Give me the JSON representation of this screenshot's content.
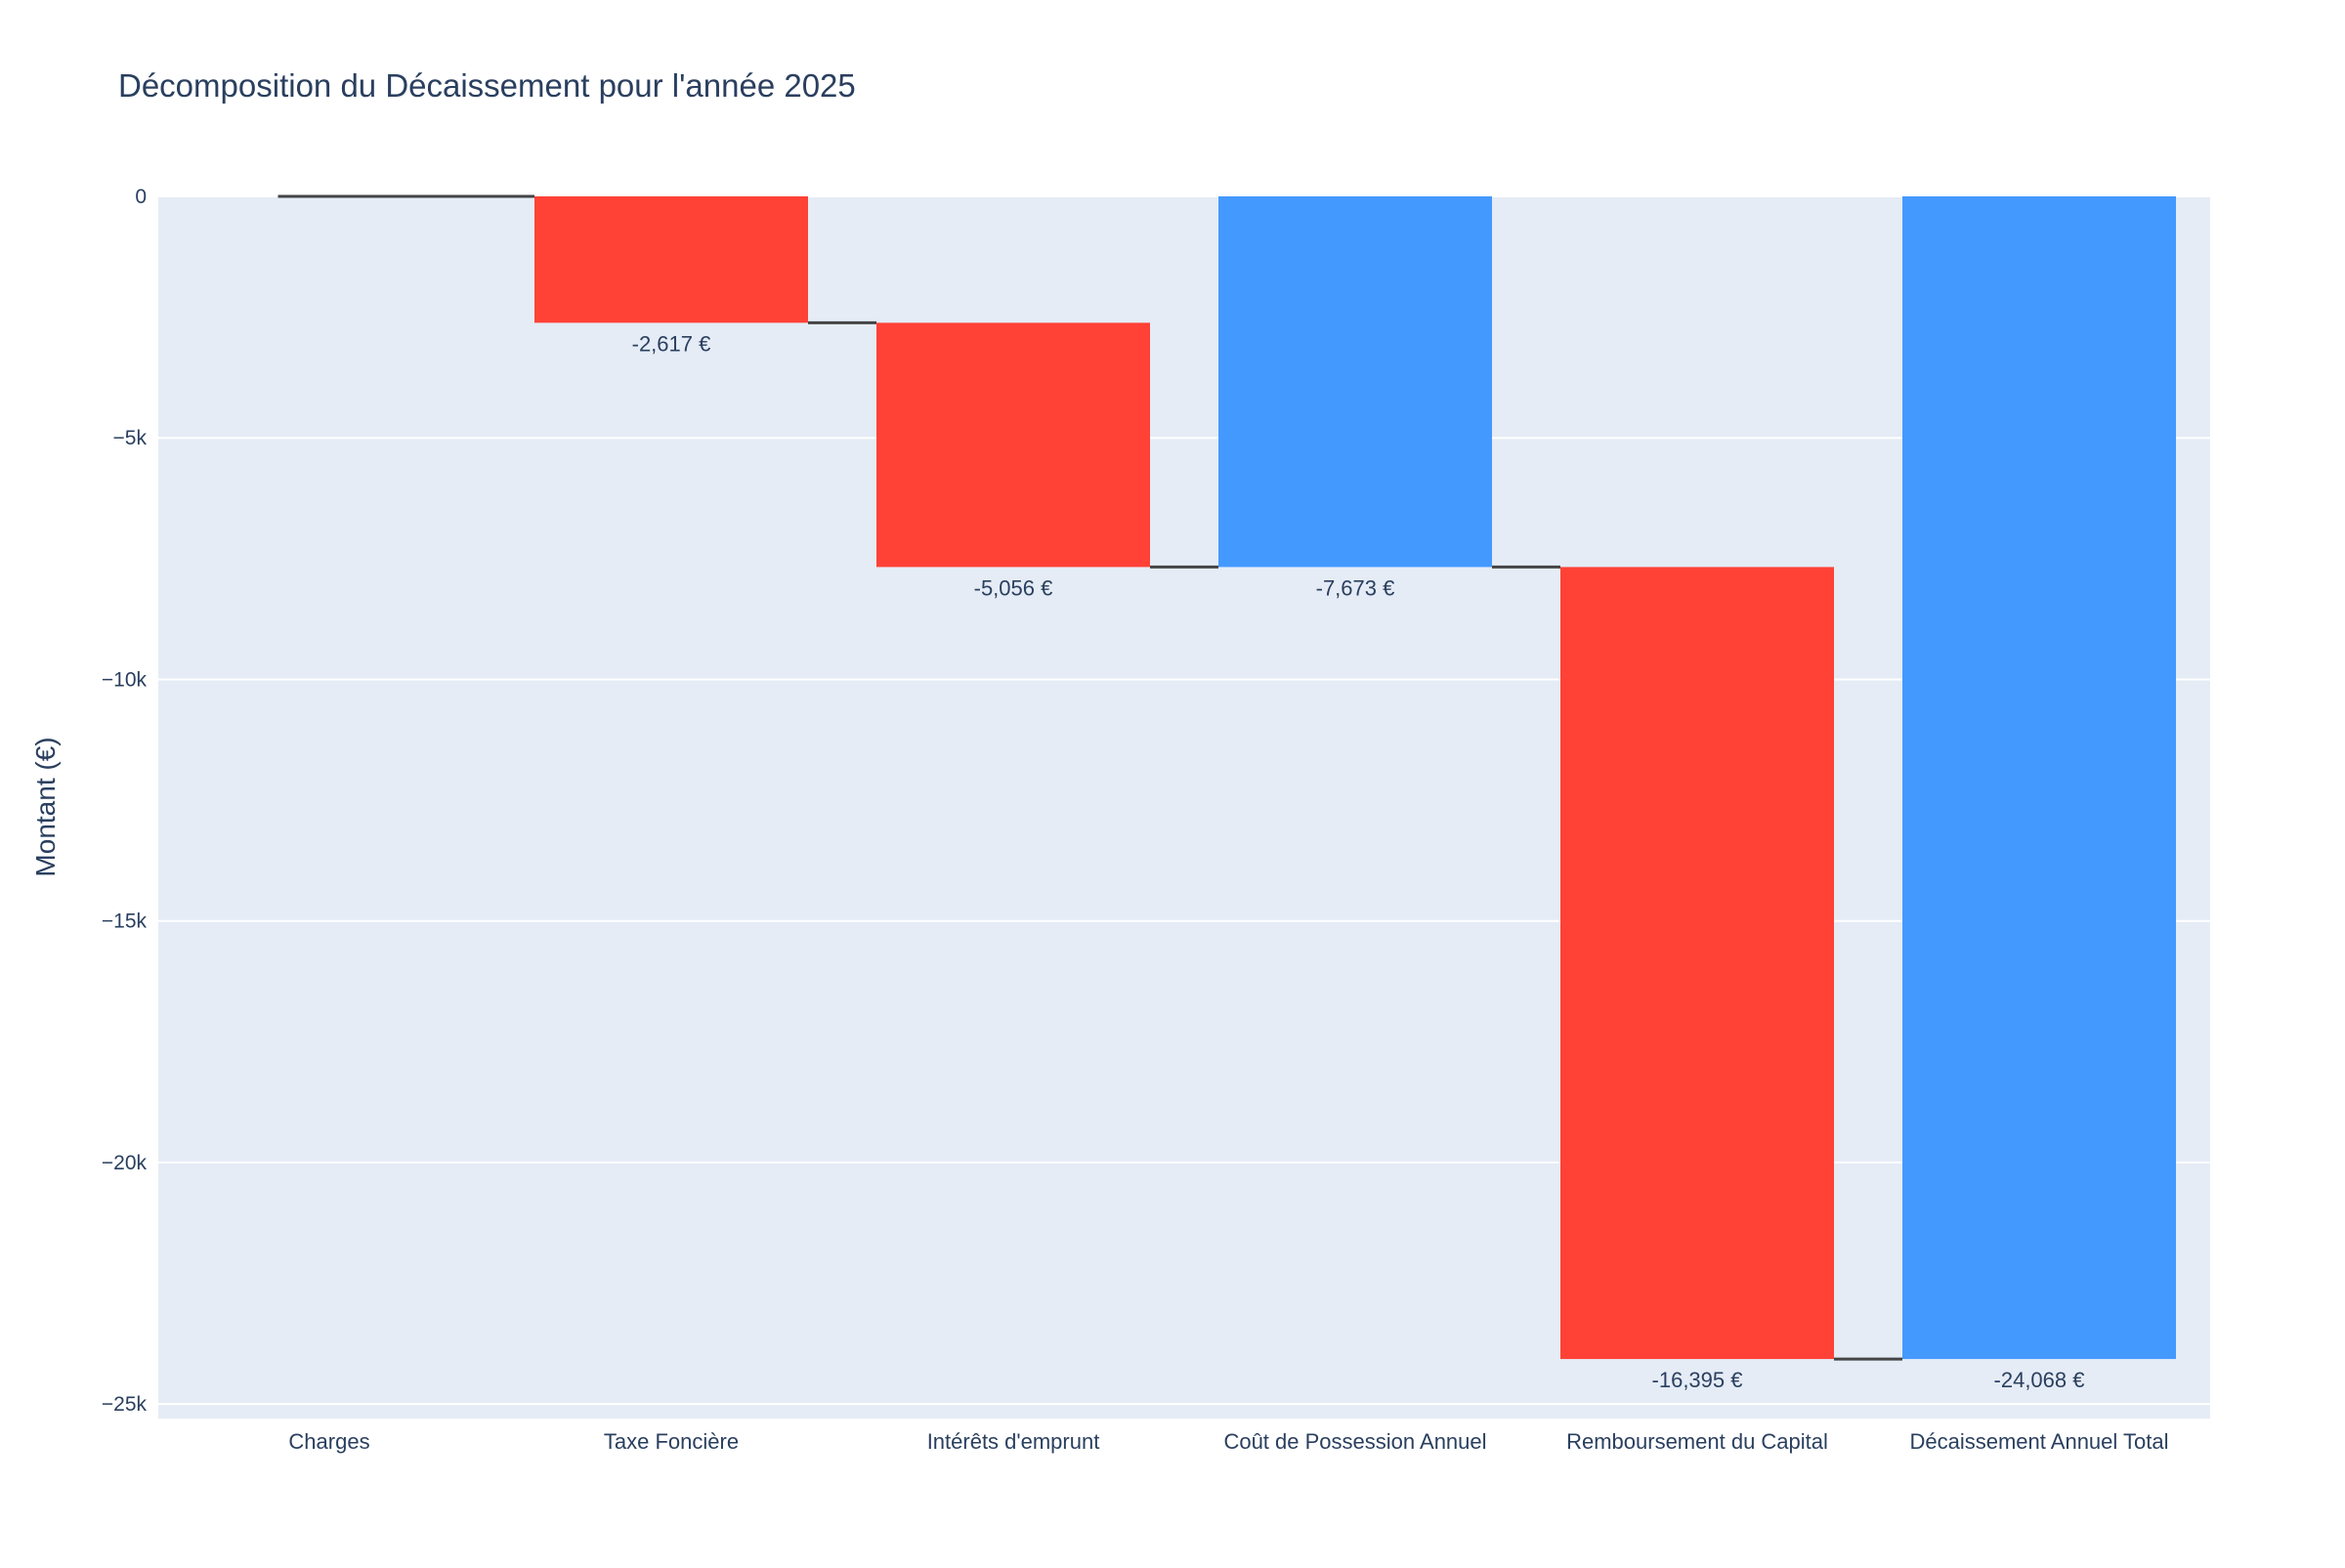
{
  "chart_data": {
    "type": "waterfall",
    "title": "Décomposition du Décaissement pour l'année 2025",
    "xlabel": "",
    "ylabel": "Montant (€)",
    "ylim": [
      -25300,
      0
    ],
    "yticks": [
      0,
      -5000,
      -10000,
      -15000,
      -20000,
      -25000
    ],
    "ytick_labels": [
      "0",
      "−5k",
      "−10k",
      "−15k",
      "−20k",
      "−25k"
    ],
    "grid": true,
    "legend": "none",
    "categories": [
      "Charges",
      "Taxe Foncière",
      "Intérêts d'emprunt",
      "Coût de Possession Annuel",
      "Remboursement du Capital",
      "Décaissement Annuel Total"
    ],
    "measures": [
      "relative",
      "relative",
      "relative",
      "total",
      "relative",
      "total"
    ],
    "values": [
      0,
      -2617,
      -5056,
      -7673,
      -16395,
      -24068
    ],
    "labels": [
      "",
      "-2,617 €",
      "-5,056 €",
      "-7,673 €",
      "-16,395 €",
      "-24,068 €"
    ],
    "colors": {
      "decreasing": "#ff4136",
      "total": "#4499ff",
      "plot_bg": "#e5ecf6",
      "grid": "#ffffff",
      "connector": "#444444",
      "text": "#2a3f5f"
    }
  }
}
